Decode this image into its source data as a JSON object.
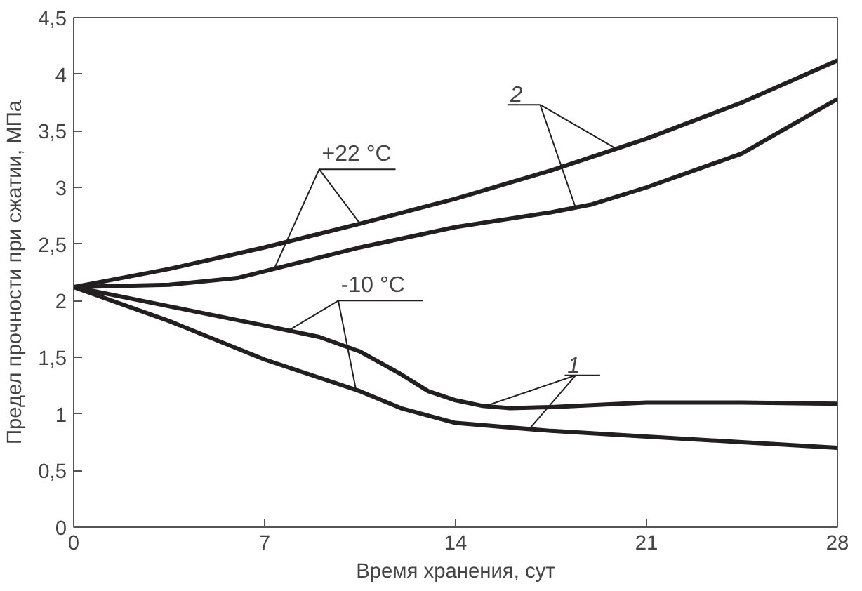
{
  "chart_data": {
    "type": "line",
    "xlabel": "Время хранения, сут",
    "ylabel": "Предел прочности при сжатии, МПа",
    "xlim": [
      0,
      28
    ],
    "xticks": [
      0,
      7,
      14,
      21,
      28
    ],
    "ylim": [
      0,
      4.5
    ],
    "yticks": [
      0,
      {
        "value": 0.5,
        "label": "0,5"
      },
      1,
      {
        "value": 1.5,
        "label": "1,5"
      },
      2,
      {
        "value": 2.5,
        "label": "2,5"
      },
      3,
      {
        "value": 3.5,
        "label": "3,5"
      },
      4,
      {
        "value": 4.5,
        "label": "4,5"
      }
    ],
    "grid": false,
    "marker": "none",
    "line_style": "solid",
    "series": [
      {
        "color": "#231f20",
        "x": [
          0,
          3.5,
          7,
          10.5,
          14,
          17.5,
          21,
          24.5,
          28
        ],
        "values": [
          2.12,
          2.28,
          2.47,
          2.68,
          2.9,
          3.15,
          3.43,
          3.75,
          4.12
        ]
      },
      {
        "color": "#231f20",
        "x": [
          0,
          3.5,
          6,
          8,
          10.5,
          14,
          17.5,
          19,
          21,
          24.5,
          28
        ],
        "values": [
          2.12,
          2.14,
          2.2,
          2.32,
          2.47,
          2.65,
          2.78,
          2.85,
          3.0,
          3.3,
          3.78
        ]
      },
      {
        "color": "#231f20",
        "x": [
          0,
          3.5,
          7,
          9,
          10.5,
          12,
          13,
          14,
          15,
          16,
          17.5,
          21,
          24.5,
          28
        ],
        "values": [
          2.12,
          1.95,
          1.78,
          1.68,
          1.55,
          1.35,
          1.2,
          1.12,
          1.07,
          1.05,
          1.06,
          1.1,
          1.1,
          1.09
        ]
      },
      {
        "color": "#231f20",
        "x": [
          0,
          3.5,
          7,
          10.5,
          12,
          14,
          17.5,
          21,
          24.5,
          28
        ],
        "values": [
          2.12,
          1.82,
          1.48,
          1.2,
          1.05,
          0.92,
          0.85,
          0.8,
          0.75,
          0.7
        ]
      }
    ],
    "annotations": [
      {
        "text": "+22 °C",
        "x": 10.5,
        "y": 2.68
      },
      {
        "text": "-10 °C",
        "x": 7.9,
        "y": 1.74
      },
      {
        "text": "2",
        "x": 19.9,
        "y": 3.34
      },
      {
        "text": "1",
        "x": 15.1,
        "y": 1.07
      }
    ]
  }
}
